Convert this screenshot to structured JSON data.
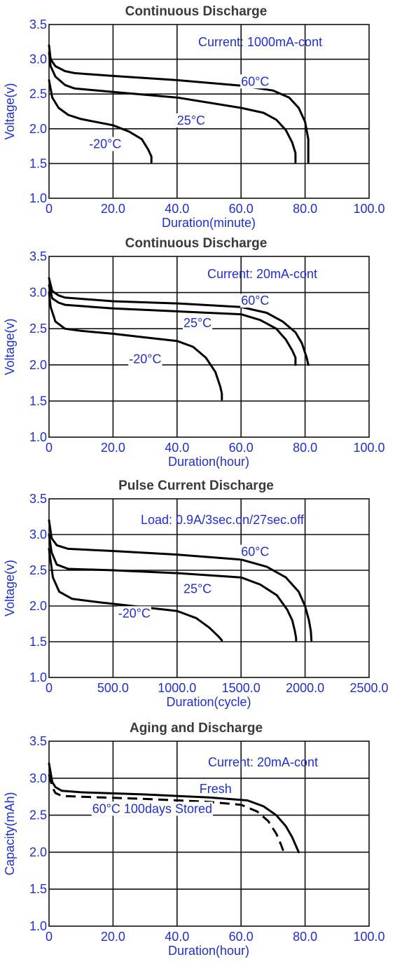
{
  "chart_data": [
    {
      "type": "line",
      "title": "Continuous Discharge",
      "xlabel": "Duration(minute)",
      "ylabel": "Voltage(v)",
      "xlim": [
        0,
        100
      ],
      "ylim": [
        1.0,
        3.5
      ],
      "xticks": [
        0,
        20,
        40,
        60,
        80,
        100
      ],
      "xtick_labels": [
        "0",
        "20.0",
        "40.0",
        "60.0",
        "80.0",
        "100.0"
      ],
      "yticks": [
        1.0,
        1.5,
        2.0,
        2.5,
        3.0,
        3.5
      ],
      "ytick_labels": [
        "1.0",
        "1.5",
        "2.0",
        "2.5",
        "3.0",
        "3.5"
      ],
      "grid": true,
      "annotation": "Current: 1000mA-cont",
      "series": [
        {
          "name": "60°C",
          "x": [
            0,
            0.5,
            2,
            5,
            8,
            20,
            40,
            60,
            70,
            75,
            78,
            80,
            81,
            81
          ],
          "y": [
            3.2,
            3.0,
            2.9,
            2.83,
            2.8,
            2.76,
            2.7,
            2.62,
            2.55,
            2.45,
            2.3,
            2.1,
            1.85,
            1.52
          ]
        },
        {
          "name": "25°C",
          "x": [
            0,
            0.5,
            2,
            5,
            8,
            20,
            40,
            60,
            67,
            71,
            74,
            76,
            77,
            77
          ],
          "y": [
            3.1,
            2.9,
            2.75,
            2.63,
            2.58,
            2.53,
            2.45,
            2.3,
            2.23,
            2.13,
            1.98,
            1.8,
            1.65,
            1.52
          ]
        },
        {
          "name": "-20°C",
          "x": [
            0,
            1,
            3,
            6,
            10,
            20,
            25,
            29,
            31,
            32,
            32
          ],
          "y": [
            2.7,
            2.45,
            2.3,
            2.2,
            2.14,
            2.05,
            1.96,
            1.85,
            1.7,
            1.6,
            1.52
          ]
        }
      ],
      "labels": [
        {
          "text": "60°C",
          "x": 60,
          "y": 2.62
        },
        {
          "text": "25°C",
          "x": 40,
          "y": 2.06
        },
        {
          "text": "-20°C",
          "x": 12.5,
          "y": 1.72
        }
      ]
    },
    {
      "type": "line",
      "title": "Continuous Discharge",
      "xlabel": "Duration(hour)",
      "ylabel": "Voltage(v)",
      "xlim": [
        0,
        100
      ],
      "ylim": [
        1.0,
        3.5
      ],
      "xticks": [
        0,
        20,
        40,
        60,
        80,
        100
      ],
      "xtick_labels": [
        "0",
        "20.0",
        "40.0",
        "60.0",
        "80.0",
        "100.0"
      ],
      "yticks": [
        1.0,
        1.5,
        2.0,
        2.5,
        3.0,
        3.5
      ],
      "ytick_labels": [
        "1.0",
        "1.5",
        "2.0",
        "2.5",
        "3.0",
        "3.5"
      ],
      "grid": true,
      "annotation": "Current: 20mA-cont",
      "series": [
        {
          "name": "60°C",
          "x": [
            0,
            1,
            3,
            5,
            20,
            40,
            60,
            68,
            73,
            77,
            79,
            80.5,
            81
          ],
          "y": [
            3.2,
            3.02,
            2.96,
            2.93,
            2.88,
            2.85,
            2.8,
            2.72,
            2.6,
            2.45,
            2.3,
            2.1,
            2.0
          ]
        },
        {
          "name": "25°C",
          "x": [
            0,
            1,
            3,
            5,
            20,
            40,
            60,
            66,
            71,
            74,
            76,
            77,
            77
          ],
          "y": [
            3.1,
            2.92,
            2.86,
            2.83,
            2.78,
            2.74,
            2.7,
            2.62,
            2.5,
            2.35,
            2.2,
            2.1,
            2.0
          ]
        },
        {
          "name": "-20°C",
          "x": [
            0,
            0.5,
            2,
            5,
            10,
            20,
            30,
            40,
            45,
            49,
            52,
            53.5,
            54,
            54
          ],
          "y": [
            3.0,
            2.8,
            2.6,
            2.5,
            2.47,
            2.43,
            2.38,
            2.33,
            2.25,
            2.1,
            1.9,
            1.7,
            1.6,
            1.52
          ]
        }
      ],
      "labels": [
        {
          "text": "60°C",
          "x": 60,
          "y": 2.83
        },
        {
          "text": "25°C",
          "x": 42,
          "y": 2.52
        },
        {
          "text": "-20°C",
          "x": 25,
          "y": 2.02
        }
      ]
    },
    {
      "type": "line",
      "title": "Pulse Current Discharge",
      "xlabel": "Duration(cycle)",
      "ylabel": "Voltage(v)",
      "xlim": [
        0,
        2500
      ],
      "ylim": [
        1.0,
        3.5
      ],
      "xticks": [
        0,
        500,
        1000,
        1500,
        2000,
        2500
      ],
      "xtick_labels": [
        "0",
        "500.0",
        "1000.0",
        "1500.0",
        "2000.0",
        "2500.0"
      ],
      "yticks": [
        1.0,
        1.5,
        2.0,
        2.5,
        3.0,
        3.5
      ],
      "ytick_labels": [
        "1.0",
        "1.5",
        "2.0",
        "2.5",
        "3.0",
        "3.5"
      ],
      "grid": true,
      "annotation": "Load: 0.9A/3sec.on/27sec.off",
      "series": [
        {
          "name": "60°C",
          "x": [
            0,
            20,
            60,
            150,
            500,
            1000,
            1500,
            1700,
            1850,
            1950,
            2000,
            2030,
            2045,
            2050
          ],
          "y": [
            3.2,
            2.95,
            2.85,
            2.8,
            2.77,
            2.72,
            2.65,
            2.55,
            2.4,
            2.2,
            2.0,
            1.8,
            1.65,
            1.52
          ]
        },
        {
          "name": "25°C",
          "x": [
            0,
            20,
            60,
            150,
            500,
            1000,
            1500,
            1650,
            1780,
            1860,
            1900,
            1920,
            1930,
            1930
          ],
          "y": [
            3.0,
            2.75,
            2.58,
            2.52,
            2.5,
            2.46,
            2.4,
            2.3,
            2.15,
            1.95,
            1.8,
            1.65,
            1.55,
            1.52
          ]
        },
        {
          "name": "-20°C",
          "x": [
            0,
            30,
            80,
            180,
            400,
            700,
            1000,
            1150,
            1250,
            1320,
            1350
          ],
          "y": [
            2.8,
            2.4,
            2.2,
            2.1,
            2.05,
            1.99,
            1.93,
            1.83,
            1.7,
            1.58,
            1.52
          ]
        }
      ],
      "labels": [
        {
          "text": "60°C",
          "x": 1500,
          "y": 2.7
        },
        {
          "text": "25°C",
          "x": 1050,
          "y": 2.18
        },
        {
          "text": "-20°C",
          "x": 540,
          "y": 1.84
        }
      ]
    },
    {
      "type": "line",
      "title": "Aging and Discharge",
      "xlabel": "Duration(hour)",
      "ylabel": "Capacity(mAh)",
      "xlim": [
        0,
        100
      ],
      "ylim": [
        1.0,
        3.5
      ],
      "xticks": [
        0,
        20,
        40,
        60,
        80,
        100
      ],
      "xtick_labels": [
        "0",
        "20.0",
        "40.0",
        "60.0",
        "80.0",
        "100.0"
      ],
      "yticks": [
        1.0,
        1.5,
        2.0,
        2.5,
        3.0,
        3.5
      ],
      "ytick_labels": [
        "1.0",
        "1.5",
        "2.0",
        "2.5",
        "3.0",
        "3.5"
      ],
      "grid": true,
      "annotation": "Current: 20mA-cont",
      "series": [
        {
          "name": "Fresh",
          "dashed": false,
          "x": [
            0,
            1,
            2,
            4,
            10,
            30,
            50,
            62,
            67,
            71,
            74,
            76,
            77.5,
            78
          ],
          "y": [
            3.2,
            2.95,
            2.88,
            2.83,
            2.81,
            2.78,
            2.74,
            2.7,
            2.62,
            2.5,
            2.35,
            2.2,
            2.05,
            2.0
          ]
        },
        {
          "name": "60°C 100days Stored",
          "dashed": true,
          "x": [
            0,
            1,
            2,
            4,
            10,
            30,
            50,
            60,
            65,
            68.5,
            71,
            72.5,
            73.5
          ],
          "y": [
            3.05,
            2.88,
            2.8,
            2.76,
            2.75,
            2.72,
            2.68,
            2.64,
            2.55,
            2.42,
            2.25,
            2.1,
            1.98
          ]
        }
      ],
      "labels": [
        {
          "text": "Fresh",
          "x": 47,
          "y": 2.8
        },
        {
          "text": "60°C 100days Stored",
          "x": 13.5,
          "y": 2.53
        }
      ]
    }
  ]
}
